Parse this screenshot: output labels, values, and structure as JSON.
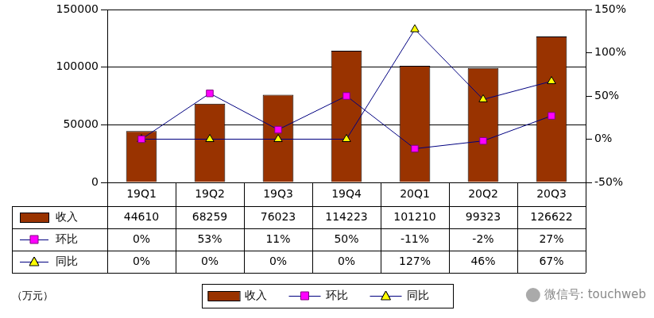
{
  "chart_data": {
    "type": "bar",
    "y_label": "（万元）",
    "annotations": [
      "微信号: touchweb"
    ],
    "categories": [
      "19Q1",
      "19Q2",
      "19Q3",
      "19Q4",
      "20Q1",
      "20Q2",
      "20Q3"
    ],
    "series": [
      {
        "name": "收入",
        "type": "bar",
        "color": "#993300",
        "values": [
          44610,
          68259,
          76023,
          114223,
          101210,
          99323,
          126622
        ]
      },
      {
        "name": "环比",
        "type": "line",
        "axis": "y2",
        "color": "#ff00ff",
        "marker": "square",
        "values": [
          0,
          53,
          11,
          50,
          -11,
          -2,
          27
        ],
        "value_labels": [
          "0%",
          "53%",
          "11%",
          "50%",
          "-11%",
          "-2%",
          "27%"
        ]
      },
      {
        "name": "同比",
        "type": "line",
        "axis": "y2",
        "color": "#ffff00",
        "marker": "triangle",
        "values": [
          0,
          0,
          0,
          0,
          127,
          46,
          67
        ],
        "value_labels": [
          "0%",
          "0%",
          "0%",
          "0%",
          "127%",
          "46%",
          "67%"
        ]
      }
    ],
    "ylim": [
      0,
      150000
    ],
    "yticks": [
      0,
      50000,
      100000,
      150000
    ],
    "y2lim": [
      -50,
      150
    ],
    "y2ticks": [
      {
        "value": -50,
        "label": "-50%"
      },
      {
        "value": 0,
        "label": "0%"
      },
      {
        "value": 50,
        "label": "50%"
      },
      {
        "value": 100,
        "label": "100%"
      },
      {
        "value": 150,
        "label": "150%"
      }
    ],
    "grid": true,
    "legend": "bottom"
  }
}
